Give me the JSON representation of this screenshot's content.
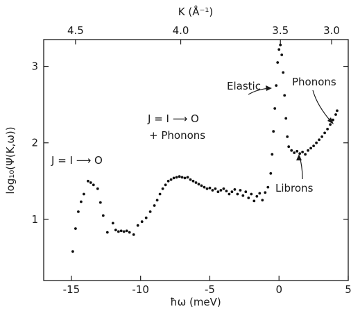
{
  "chart_data": {
    "type": "scatter",
    "xlabel": "ħω (meV)",
    "ylabel": "log₁₀(Ψ(K,ω))",
    "top_axis_label": "K (Å⁻¹)",
    "xlim": [
      -17,
      5
    ],
    "ylim": [
      0.2,
      3.35
    ],
    "x_ticks": [
      -15,
      -10,
      -5,
      0,
      5
    ],
    "x_tick_labels": [
      "-15",
      "-10",
      "-5",
      "0",
      "5"
    ],
    "y_ticks": [
      1,
      2,
      3
    ],
    "y_tick_labels": [
      "1",
      "2",
      "3"
    ],
    "top_ticks": [
      {
        "x": -14.7,
        "label": "4.5"
      },
      {
        "x": -7.1,
        "label": "4.0"
      },
      {
        "x": 0.1,
        "label": "3.5"
      },
      {
        "x": 3.8,
        "label": "3.0"
      }
    ],
    "annotations": {
      "left_peak": "J = I ⟶ O",
      "mid_line1": "J = I ⟶ O",
      "mid_line2": "+ Phonons",
      "elastic": "Elastic",
      "phonons": "Phonons",
      "librons": "Librons"
    },
    "series": [
      {
        "points": [
          [
            -14.9,
            0.58
          ],
          [
            -14.7,
            0.88
          ],
          [
            -14.5,
            1.1
          ],
          [
            -14.3,
            1.23
          ],
          [
            -14.1,
            1.33
          ],
          [
            -13.8,
            1.5
          ],
          [
            -13.6,
            1.48
          ],
          [
            -13.4,
            1.45
          ],
          [
            -13.1,
            1.4
          ],
          [
            -12.9,
            1.22
          ],
          [
            -12.7,
            1.05
          ],
          [
            -12.4,
            0.83
          ],
          [
            -12.0,
            0.95
          ],
          [
            -11.8,
            0.86
          ],
          [
            -11.6,
            0.84
          ],
          [
            -11.4,
            0.85
          ],
          [
            -11.2,
            0.84
          ],
          [
            -11.0,
            0.85
          ],
          [
            -10.8,
            0.83
          ],
          [
            -10.5,
            0.8
          ],
          [
            -10.2,
            0.92
          ],
          [
            -9.9,
            0.97
          ],
          [
            -9.6,
            1.02
          ],
          [
            -9.3,
            1.1
          ],
          [
            -9.0,
            1.18
          ],
          [
            -8.8,
            1.25
          ],
          [
            -8.6,
            1.33
          ],
          [
            -8.4,
            1.4
          ],
          [
            -8.2,
            1.45
          ],
          [
            -8.0,
            1.5
          ],
          [
            -7.8,
            1.52
          ],
          [
            -7.6,
            1.54
          ],
          [
            -7.4,
            1.55
          ],
          [
            -7.2,
            1.56
          ],
          [
            -7.0,
            1.55
          ],
          [
            -6.8,
            1.54
          ],
          [
            -6.6,
            1.55
          ],
          [
            -6.4,
            1.52
          ],
          [
            -6.2,
            1.5
          ],
          [
            -6.0,
            1.48
          ],
          [
            -5.8,
            1.46
          ],
          [
            -5.6,
            1.44
          ],
          [
            -5.4,
            1.42
          ],
          [
            -5.2,
            1.4
          ],
          [
            -5.0,
            1.41
          ],
          [
            -4.8,
            1.38
          ],
          [
            -4.6,
            1.4
          ],
          [
            -4.4,
            1.36
          ],
          [
            -4.2,
            1.38
          ],
          [
            -4.0,
            1.4
          ],
          [
            -3.8,
            1.37
          ],
          [
            -3.6,
            1.33
          ],
          [
            -3.4,
            1.36
          ],
          [
            -3.2,
            1.39
          ],
          [
            -3.0,
            1.33
          ],
          [
            -2.8,
            1.38
          ],
          [
            -2.6,
            1.31
          ],
          [
            -2.4,
            1.36
          ],
          [
            -2.2,
            1.28
          ],
          [
            -2.0,
            1.33
          ],
          [
            -1.8,
            1.24
          ],
          [
            -1.6,
            1.3
          ],
          [
            -1.4,
            1.34
          ],
          [
            -1.2,
            1.25
          ],
          [
            -1.0,
            1.35
          ],
          [
            -0.8,
            1.42
          ],
          [
            -0.6,
            1.6
          ],
          [
            -0.5,
            1.85
          ],
          [
            -0.4,
            2.15
          ],
          [
            -0.3,
            2.45
          ],
          [
            -0.2,
            2.75
          ],
          [
            -0.1,
            3.05
          ],
          [
            0.0,
            3.22
          ],
          [
            0.1,
            3.28
          ],
          [
            0.2,
            3.15
          ],
          [
            0.3,
            2.92
          ],
          [
            0.4,
            2.62
          ],
          [
            0.5,
            2.32
          ],
          [
            0.6,
            2.08
          ],
          [
            0.7,
            1.95
          ],
          [
            0.9,
            1.9
          ],
          [
            1.1,
            1.87
          ],
          [
            1.3,
            1.89
          ],
          [
            1.5,
            1.86
          ],
          [
            1.7,
            1.88
          ],
          [
            1.9,
            1.85
          ],
          [
            2.1,
            1.9
          ],
          [
            2.3,
            1.93
          ],
          [
            2.5,
            1.96
          ],
          [
            2.7,
            2.0
          ],
          [
            2.9,
            2.04
          ],
          [
            3.1,
            2.08
          ],
          [
            3.3,
            2.13
          ],
          [
            3.5,
            2.18
          ],
          [
            3.7,
            2.24
          ],
          [
            3.9,
            2.3
          ],
          [
            4.1,
            2.37
          ],
          [
            4.2,
            2.42
          ]
        ]
      }
    ]
  }
}
